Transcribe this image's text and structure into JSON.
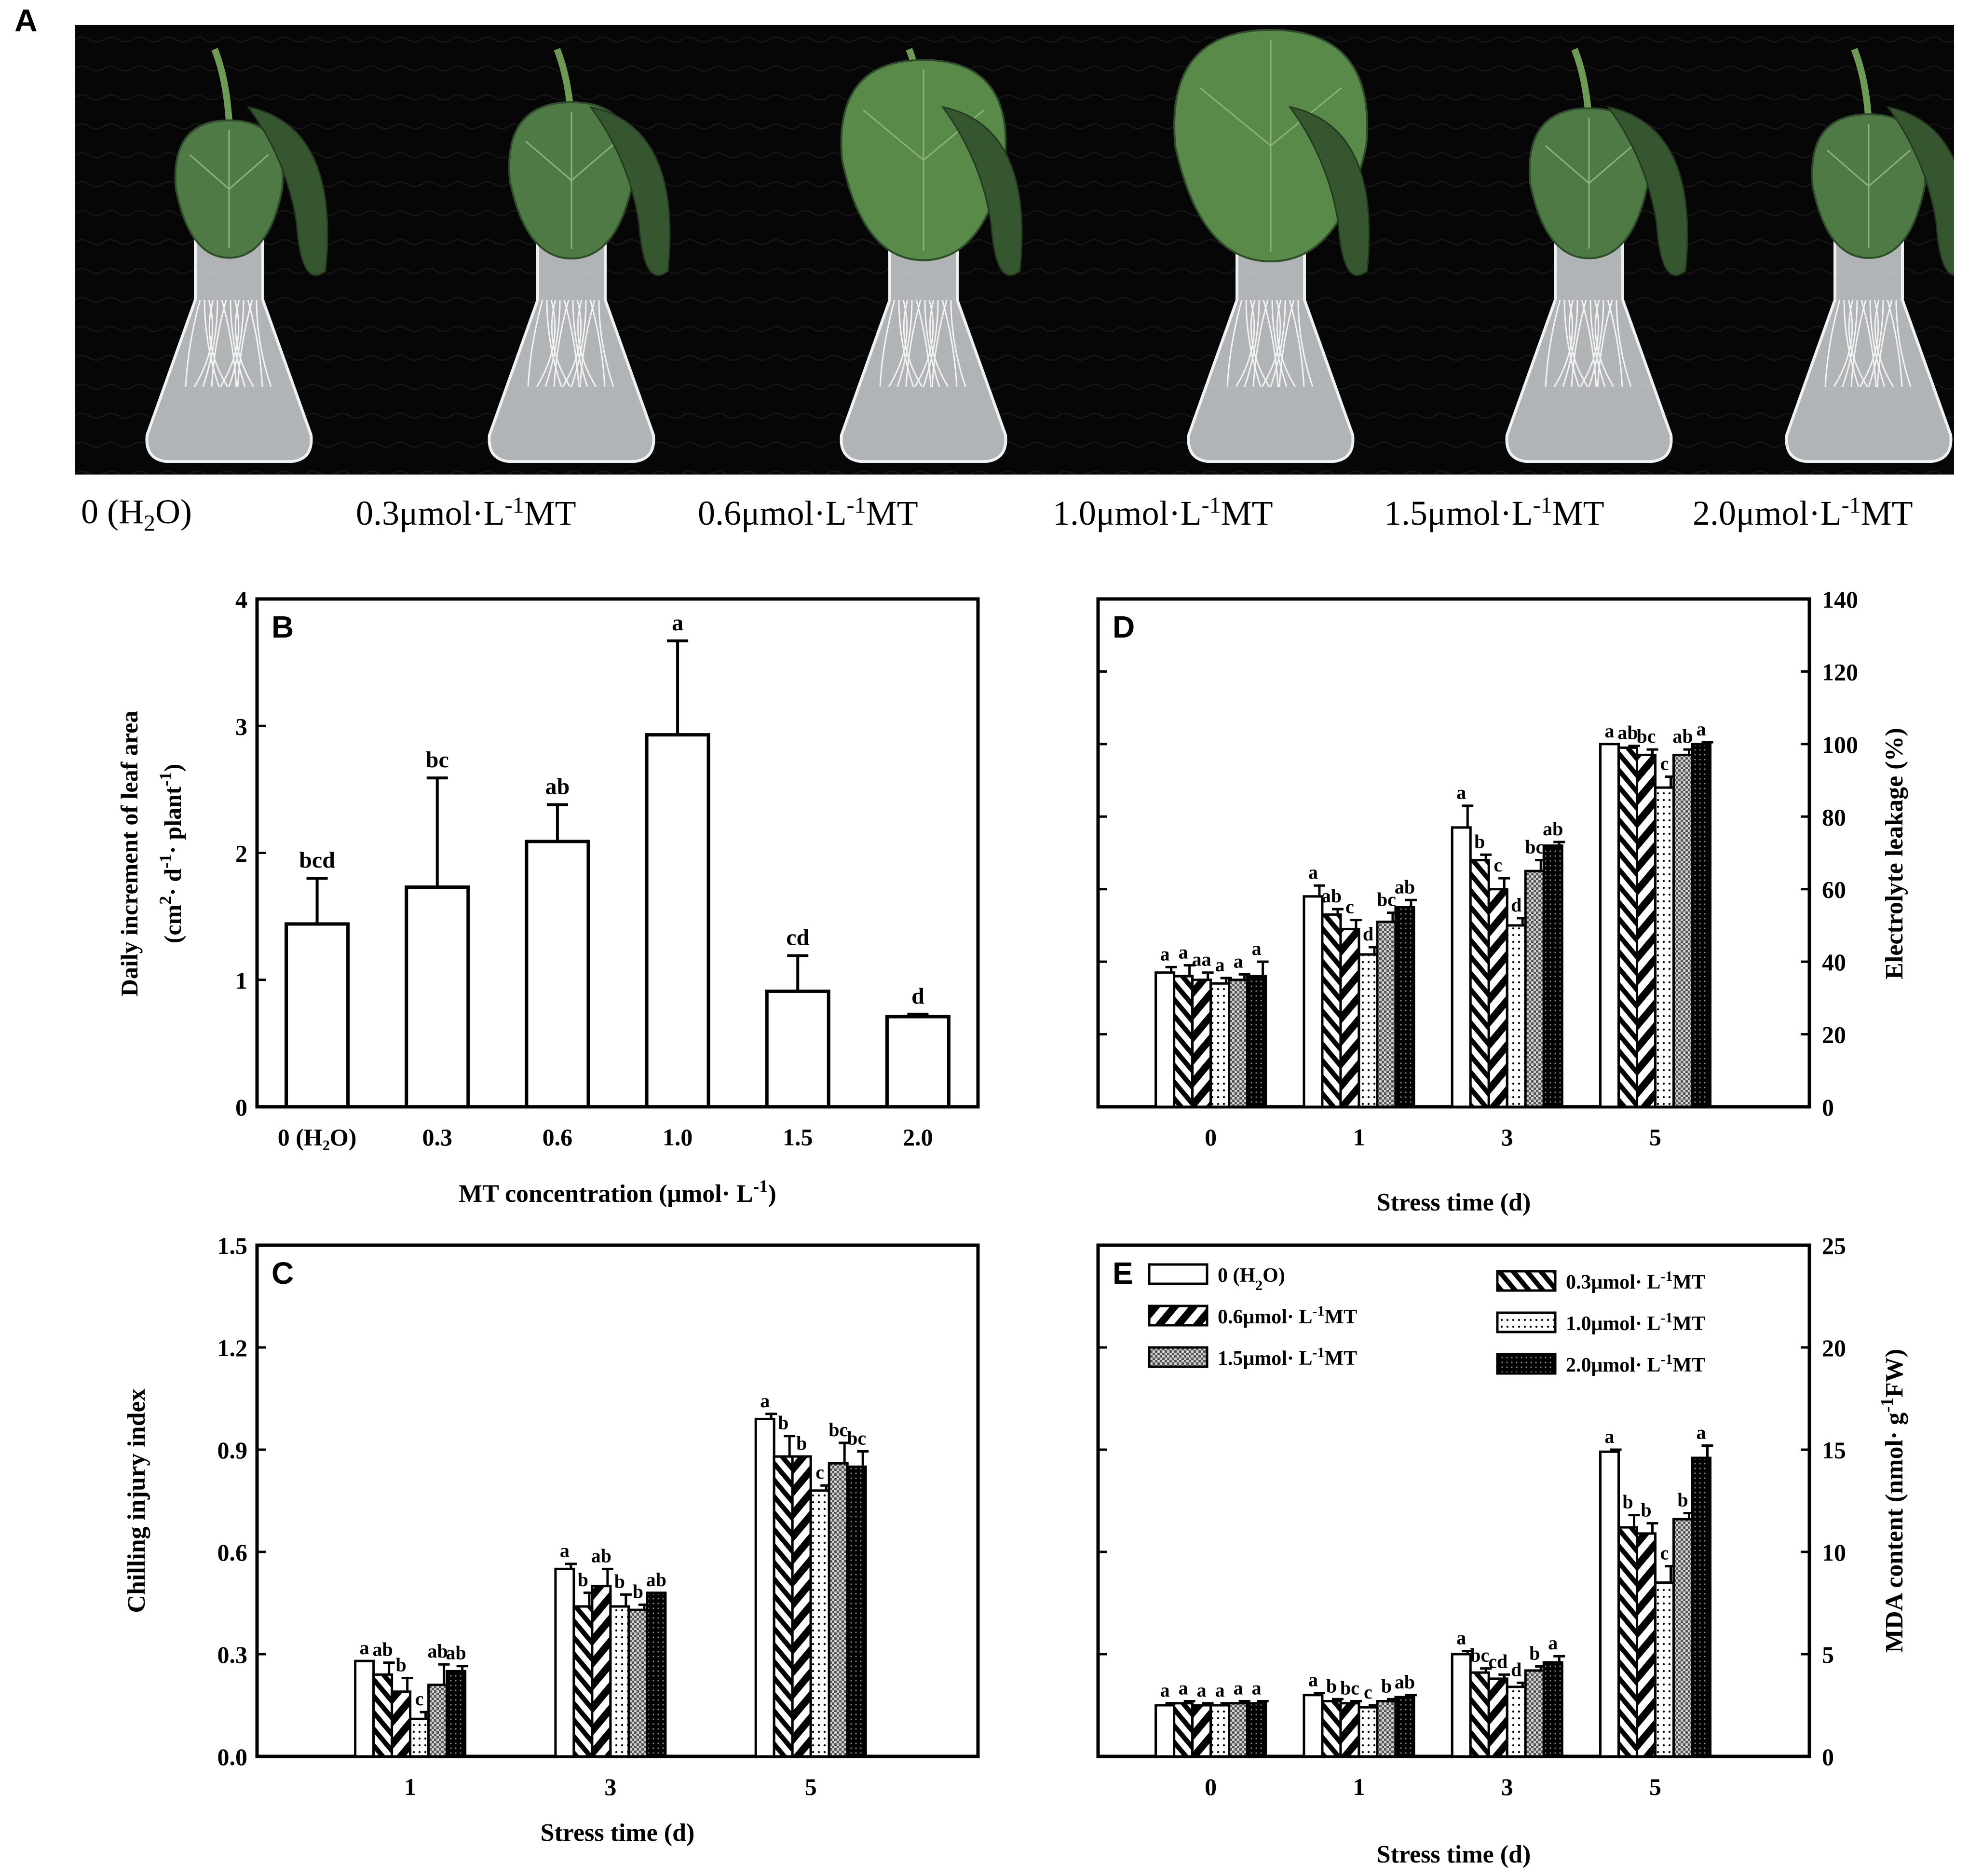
{
  "panels": {
    "A": "A",
    "B": "B",
    "C": "C",
    "D": "D",
    "E": "E"
  },
  "photo_labels": [
    {
      "pre": "0 (H",
      "sub": "2",
      "post": "O)"
    },
    {
      "pre": "0.3μmol·L",
      "sup": "-1",
      "post": "MT"
    },
    {
      "pre": "0.6μmol·L",
      "sup": "-1",
      "post": "MT"
    },
    {
      "pre": "1.0μmol·L",
      "sup": "-1",
      "post": "MT"
    },
    {
      "pre": "1.5μmol·L",
      "sup": "-1",
      "post": "MT"
    },
    {
      "pre": "2.0μmol·L",
      "sup": "-1",
      "post": "MT"
    }
  ],
  "chart_data": [
    {
      "id": "B",
      "type": "bar",
      "categories": [
        "0 (H₂O)",
        "0.3",
        "0.6",
        "1.0",
        "1.5",
        "2.0"
      ],
      "values": [
        1.44,
        1.73,
        2.09,
        2.93,
        0.91,
        0.71
      ],
      "errors": [
        0.36,
        0.86,
        0.29,
        0.74,
        0.28,
        0.02
      ],
      "letters": [
        "bcd",
        "bc",
        "ab",
        "a",
        "cd",
        "d"
      ],
      "xlabel": "MT concentration (μmol· L",
      "xlabel_sup": "-1",
      "xlabel_end": ")",
      "ylabel": "Daily increment of leaf area",
      "ylabel2": "(cm",
      "ylabel2_sup1": "2",
      "ylabel2_mid": "· d",
      "ylabel2_sup2": "-1",
      "ylabel2_mid2": "· plant",
      "ylabel2_sup3": "-1",
      "ylabel2_end": ")",
      "ylim": [
        0,
        4
      ],
      "yticks": [
        "0",
        "1",
        "2",
        "3",
        "4"
      ]
    },
    {
      "id": "C",
      "type": "bar",
      "categories": [
        "1",
        "3",
        "5"
      ],
      "series": [
        {
          "values": [
            0.28,
            0.55,
            0.99
          ],
          "errors": [
            0.0,
            0.015,
            0.015
          ],
          "letters": [
            "a",
            "a",
            "a"
          ]
        },
        {
          "values": [
            0.24,
            0.44,
            0.88
          ],
          "errors": [
            0.035,
            0.04,
            0.06
          ],
          "letters": [
            "ab",
            "b",
            "b"
          ]
        },
        {
          "values": [
            0.19,
            0.5,
            0.88
          ],
          "errors": [
            0.04,
            0.05,
            0.0
          ],
          "letters": [
            "b",
            "ab",
            "b"
          ]
        },
        {
          "values": [
            0.11,
            0.44,
            0.78
          ],
          "errors": [
            0.02,
            0.035,
            0.015
          ],
          "letters": [
            "c",
            "b",
            "c"
          ]
        },
        {
          "values": [
            0.21,
            0.43,
            0.86
          ],
          "errors": [
            0.06,
            0.015,
            0.06
          ],
          "letters": [
            "ab",
            "b",
            "bc"
          ]
        },
        {
          "values": [
            0.25,
            0.48,
            0.85
          ],
          "errors": [
            0.015,
            0.0,
            0.045
          ],
          "letters": [
            "ab",
            "ab",
            "bc"
          ]
        }
      ],
      "xlabel": "Stress time (d)",
      "ylabel": "Chilling injury index",
      "ylim": [
        0,
        1.5
      ],
      "yticks": [
        "0.0",
        "0.3",
        "0.6",
        "0.9",
        "1.2",
        "1.5"
      ]
    },
    {
      "id": "D",
      "type": "bar",
      "categories": [
        "0",
        "1",
        "3",
        "5"
      ],
      "series": [
        {
          "values": [
            37,
            58,
            77,
            100
          ],
          "errors": [
            1.5,
            3.0,
            6.0,
            0.0
          ],
          "letters": [
            "a",
            "a",
            "a",
            "a"
          ]
        },
        {
          "values": [
            36,
            53,
            68,
            99
          ],
          "errors": [
            3.0,
            1.5,
            1.5,
            0.5
          ],
          "letters": [
            "a",
            "ab",
            "b",
            "ab"
          ]
        },
        {
          "values": [
            35,
            49,
            60,
            97
          ],
          "errors": [
            2.0,
            2.5,
            3.0,
            1.5
          ],
          "letters": [
            "aa",
            "c",
            "c",
            "bc"
          ]
        },
        {
          "values": [
            34,
            42,
            50,
            88
          ],
          "errors": [
            1.5,
            2.0,
            2.0,
            3.0
          ],
          "letters": [
            "a",
            "d",
            "d",
            "c"
          ]
        },
        {
          "values": [
            35,
            51,
            65,
            97
          ],
          "errors": [
            1.5,
            2.5,
            3.0,
            1.5
          ],
          "letters": [
            "a",
            "bc",
            "bc",
            "ab"
          ]
        },
        {
          "values": [
            36,
            55,
            72,
            100
          ],
          "errors": [
            4.0,
            2.0,
            1.0,
            0.5
          ],
          "letters": [
            "a",
            "ab",
            "ab",
            "a"
          ]
        }
      ],
      "xlabel": "Stress time (d)",
      "ylabel": "Electrolyte leakage (%)",
      "ylim": [
        0,
        140
      ],
      "yticks": [
        "0",
        "20",
        "40",
        "60",
        "80",
        "100",
        "120",
        "140"
      ]
    },
    {
      "id": "E",
      "type": "bar",
      "categories": [
        "0",
        "1",
        "3",
        "5"
      ],
      "series": [
        {
          "name": "0 (H₂O)",
          "values": [
            2.5,
            3.0,
            5.0,
            14.9
          ],
          "errors": [
            0.1,
            0.1,
            0.15,
            0.1
          ],
          "letters": [
            "a",
            "a",
            "a",
            "a"
          ]
        },
        {
          "name": "0.3μmol· L⁻¹MT",
          "values": [
            2.6,
            2.7,
            4.1,
            11.2
          ],
          "errors": [
            0.1,
            0.1,
            0.2,
            0.6
          ],
          "letters": [
            "a",
            "b",
            "bc",
            "b"
          ]
        },
        {
          "name": "0.6μmol· L⁻¹MT",
          "values": [
            2.5,
            2.6,
            3.8,
            10.9
          ],
          "errors": [
            0.1,
            0.1,
            0.2,
            0.5
          ],
          "letters": [
            "a",
            "bc",
            "cd",
            "b"
          ]
        },
        {
          "name": "1.0μmol· L⁻¹MT",
          "values": [
            2.5,
            2.4,
            3.4,
            8.5
          ],
          "errors": [
            0.1,
            0.1,
            0.2,
            0.8
          ],
          "letters": [
            "a",
            "c",
            "d",
            "c"
          ]
        },
        {
          "name": "1.5μmol· L⁻¹MT",
          "values": [
            2.6,
            2.7,
            4.2,
            11.6
          ],
          "errors": [
            0.1,
            0.1,
            0.2,
            0.3
          ],
          "letters": [
            "a",
            "b",
            "b",
            "b"
          ]
        },
        {
          "name": "2.0μmol· L⁻¹MT",
          "values": [
            2.6,
            2.9,
            4.6,
            14.6
          ],
          "errors": [
            0.1,
            0.1,
            0.3,
            0.6
          ],
          "letters": [
            "a",
            "ab",
            "a",
            "a"
          ]
        }
      ],
      "xlabel": "Stress time (d)",
      "ylabel": "MDA content  (nmol· g",
      "ylabel_sup": "-1",
      "ylabel_end": "FW)",
      "ylim": [
        0,
        25
      ],
      "yticks": [
        "0",
        "5",
        "10",
        "15",
        "20",
        "25"
      ],
      "legend": [
        {
          "pre": "0 (H",
          "sub": "2",
          "post": "O)"
        },
        {
          "pre": "0.3μmol· L",
          "sup": "-1",
          "post": "MT"
        },
        {
          "pre": "0.6μmol· L",
          "sup": "-1",
          "post": "MT"
        },
        {
          "pre": "1.0μmol· L",
          "sup": "-1",
          "post": "MT"
        },
        {
          "pre": "1.5μmol· L",
          "sup": "-1",
          "post": "MT"
        },
        {
          "pre": "2.0μmol· L",
          "sup": "-1",
          "post": "MT"
        }
      ],
      "legend_position": "top"
    }
  ],
  "colors": {
    "bar_outline": "#000000",
    "photo_background": "#070707",
    "leaf": "#4f7a45",
    "leaf_dark": "#36562f",
    "glass": "#d9dde0"
  }
}
